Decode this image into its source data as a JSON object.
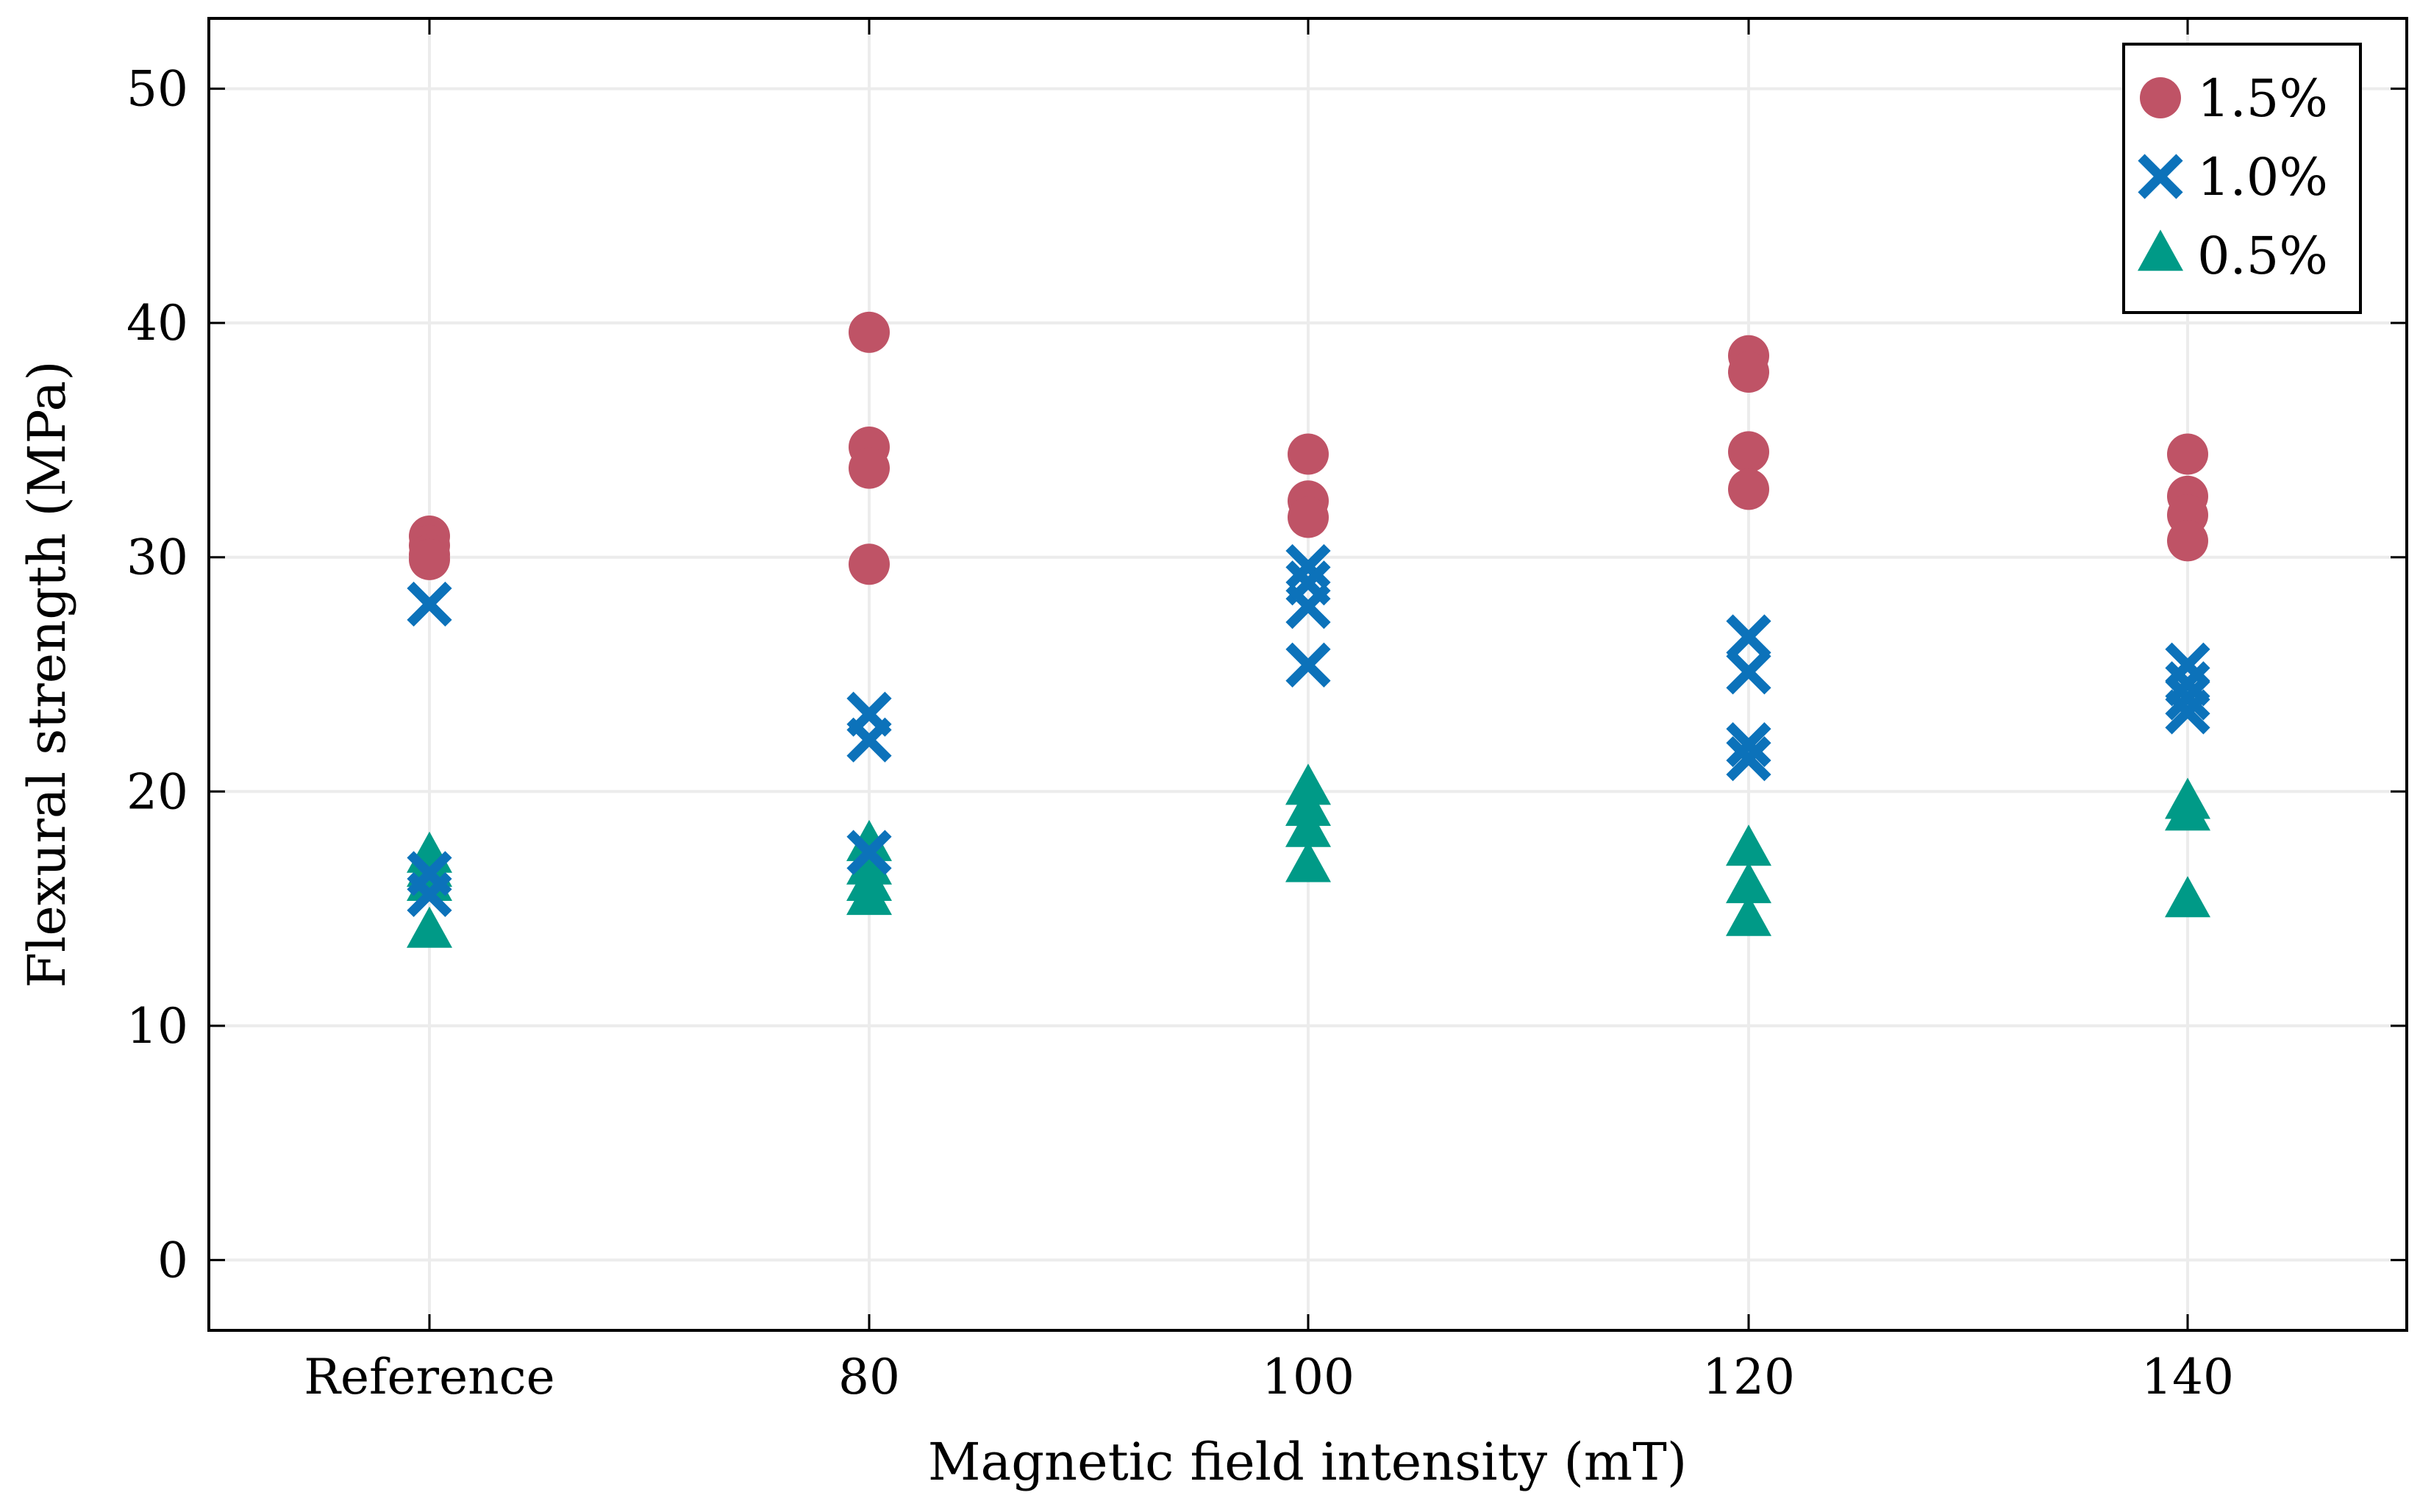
{
  "chart_data": {
    "type": "scatter",
    "title": "",
    "xlabel": "Magnetic field intensity (mT)",
    "ylabel": "Flexural strength (MPa)",
    "categories": [
      "Reference",
      "80",
      "100",
      "120",
      "140"
    ],
    "ylim": [
      -3,
      53
    ],
    "yticks": [
      0,
      10,
      20,
      30,
      40,
      50
    ],
    "grid": true,
    "legend_position": "top-right",
    "series": [
      {
        "name": "1.5%",
        "marker": "circle",
        "color": "#bf5366",
        "points": [
          {
            "category": "Reference",
            "values": [
              30.9,
              30.5,
              30.1,
              29.9
            ]
          },
          {
            "category": "80",
            "values": [
              39.6,
              34.7,
              33.8,
              29.7
            ]
          },
          {
            "category": "100",
            "values": [
              34.4,
              32.4,
              31.7
            ]
          },
          {
            "category": "120",
            "values": [
              38.6,
              37.9,
              34.5,
              32.9
            ]
          },
          {
            "category": "140",
            "values": [
              34.4,
              32.6,
              31.8,
              30.7
            ]
          }
        ]
      },
      {
        "name": "1.0%",
        "marker": "cross",
        "color": "#0c72ba",
        "points": [
          {
            "category": "Reference",
            "values": [
              28.0,
              16.5,
              15.6
            ]
          },
          {
            "category": "80",
            "values": [
              23.3,
              22.2,
              17.4
            ]
          },
          {
            "category": "100",
            "values": [
              29.6,
              28.9,
              27.9,
              25.4
            ]
          },
          {
            "category": "120",
            "values": [
              26.6,
              25.1,
              22.0,
              21.4
            ]
          },
          {
            "category": "140",
            "values": [
              25.4,
              24.6,
              24.0,
              23.4
            ]
          }
        ]
      },
      {
        "name": "0.5%",
        "marker": "triangle",
        "color": "#009a87",
        "points": [
          {
            "category": "Reference",
            "values": [
              17.2,
              16.6,
              16.0,
              14.0
            ]
          },
          {
            "category": "80",
            "values": [
              17.7,
              16.7,
              16.0,
              15.4
            ]
          },
          {
            "category": "100",
            "values": [
              20.1,
              19.2,
              18.3,
              16.8
            ]
          },
          {
            "category": "120",
            "values": [
              17.5,
              15.9,
              14.5
            ]
          },
          {
            "category": "140",
            "values": [
              19.5,
              19.0,
              15.3
            ]
          }
        ]
      }
    ]
  }
}
